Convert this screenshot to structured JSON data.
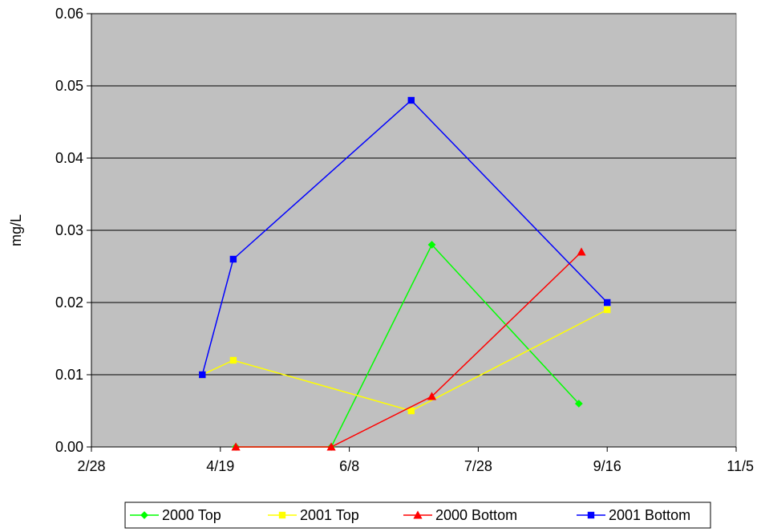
{
  "chart_data": {
    "type": "line",
    "title": "",
    "xlabel": "",
    "ylabel": "mg/L",
    "x_ticks": [
      "2/28",
      "4/19",
      "6/8",
      "7/28",
      "9/16",
      "11/5"
    ],
    "y_ticks": [
      "0.00",
      "0.01",
      "0.02",
      "0.03",
      "0.04",
      "0.05",
      "0.06"
    ],
    "ylim": [
      0,
      0.06
    ],
    "xlim": [
      "2/28",
      "11/5"
    ],
    "grid": "horizontal",
    "plot_background": "#C0C0C0",
    "legend_position": "bottom",
    "series": [
      {
        "name": "2000 Top",
        "color": "#00FF00",
        "marker": "diamond",
        "points": [
          {
            "x": "4/25",
            "y": 0.0
          },
          {
            "x": "6/1",
            "y": 0.0
          },
          {
            "x": "7/10",
            "y": 0.028
          },
          {
            "x": "9/5",
            "y": 0.006
          }
        ]
      },
      {
        "name": "2001 Top",
        "color": "#FFFF00",
        "marker": "square",
        "points": [
          {
            "x": "4/12",
            "y": 0.01
          },
          {
            "x": "4/24",
            "y": 0.012
          },
          {
            "x": "7/2",
            "y": 0.005
          },
          {
            "x": "9/16",
            "y": 0.019
          }
        ]
      },
      {
        "name": "2000 Bottom",
        "color": "#FF0000",
        "marker": "triangle",
        "points": [
          {
            "x": "4/25",
            "y": 0.0
          },
          {
            "x": "6/1",
            "y": 0.0
          },
          {
            "x": "7/10",
            "y": 0.007
          },
          {
            "x": "9/6",
            "y": 0.027
          }
        ]
      },
      {
        "name": "2001 Bottom",
        "color": "#0000FF",
        "marker": "square",
        "points": [
          {
            "x": "4/12",
            "y": 0.01
          },
          {
            "x": "4/24",
            "y": 0.026
          },
          {
            "x": "7/2",
            "y": 0.048
          },
          {
            "x": "9/16",
            "y": 0.02
          }
        ]
      }
    ]
  }
}
